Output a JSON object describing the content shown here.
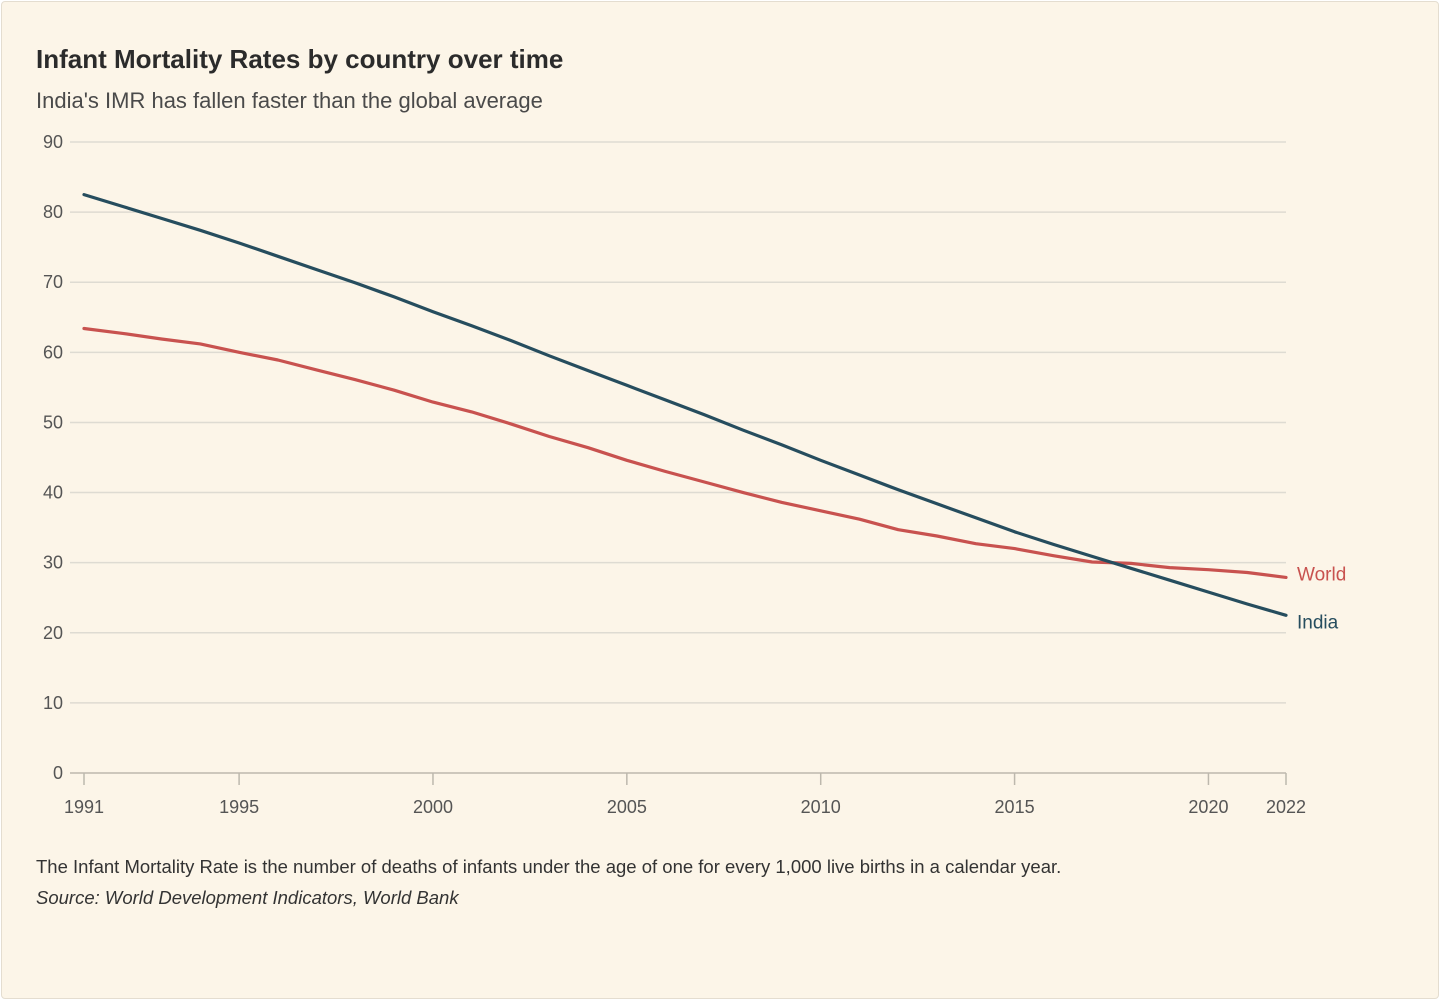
{
  "header": {
    "title": "Infant Mortality Rates by country over time",
    "subtitle": "India's IMR has fallen faster than the global average"
  },
  "footer": {
    "note": "The Infant Mortality Rate is the number of deaths of infants under the age of one for every 1,000 live births in a calendar year.",
    "source": "Source: World Development Indicators, World Bank"
  },
  "colors": {
    "background": "#fcf5e8",
    "india": "#264d5e",
    "world": "#c8524f",
    "grid": "#dedbd2",
    "axis": "#bdb8ad"
  },
  "chart_data": {
    "type": "line",
    "title": "Infant Mortality Rates by country over time",
    "subtitle": "India's IMR has fallen faster than the global average",
    "xlabel": "",
    "ylabel": "",
    "xlim": [
      1991,
      2022
    ],
    "ylim": [
      0,
      90
    ],
    "x_ticks": [
      1991,
      1995,
      2000,
      2005,
      2010,
      2015,
      2020,
      2022
    ],
    "y_ticks": [
      0,
      10,
      20,
      30,
      40,
      50,
      60,
      70,
      80,
      90
    ],
    "grid": true,
    "legend": "inline labels at right end of lines",
    "x": [
      1991,
      1992,
      1993,
      1994,
      1995,
      1996,
      1997,
      1998,
      1999,
      2000,
      2001,
      2002,
      2003,
      2004,
      2005,
      2006,
      2007,
      2008,
      2009,
      2010,
      2011,
      2012,
      2013,
      2014,
      2015,
      2016,
      2017,
      2018,
      2019,
      2020,
      2021,
      2022
    ],
    "series": [
      {
        "name": "World",
        "values": [
          63.4,
          62.7,
          61.9,
          61.2,
          60.0,
          58.9,
          57.5,
          56.1,
          54.6,
          52.9,
          51.5,
          49.8,
          48.0,
          46.4,
          44.6,
          43.0,
          41.5,
          40.0,
          38.6,
          37.4,
          36.2,
          34.7,
          33.8,
          32.7,
          32.0,
          31.0,
          30.1,
          29.9,
          29.3,
          29.0,
          28.6,
          27.9
        ]
      },
      {
        "name": "India",
        "values": [
          82.5,
          80.8,
          79.1,
          77.4,
          75.6,
          73.7,
          71.8,
          69.9,
          67.9,
          65.8,
          63.8,
          61.7,
          59.5,
          57.4,
          55.3,
          53.2,
          51.1,
          48.9,
          46.8,
          44.6,
          42.5,
          40.4,
          38.4,
          36.4,
          34.4,
          32.6,
          30.9,
          29.2,
          27.5,
          25.8,
          24.1,
          22.5
        ]
      }
    ]
  }
}
